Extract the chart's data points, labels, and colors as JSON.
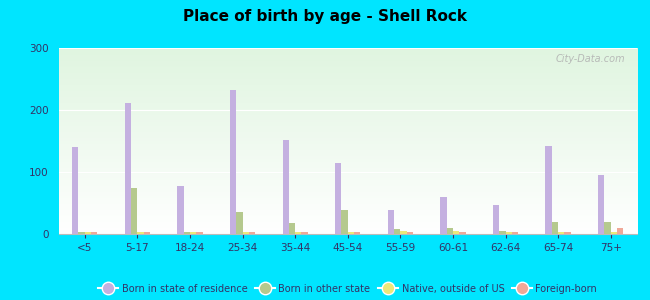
{
  "title": "Place of birth by age - Shell Rock",
  "categories": [
    "<5",
    "5-17",
    "18-24",
    "25-34",
    "35-44",
    "45-54",
    "55-59",
    "60-61",
    "62-64",
    "65-74",
    "75+"
  ],
  "series": {
    "Born in state of residence": [
      140,
      212,
      78,
      232,
      152,
      115,
      38,
      60,
      47,
      142,
      95
    ],
    "Born in other state": [
      3,
      75,
      3,
      35,
      18,
      38,
      8,
      10,
      5,
      20,
      20
    ],
    "Native, outside of US": [
      3,
      3,
      3,
      3,
      3,
      3,
      5,
      5,
      3,
      3,
      3
    ],
    "Foreign-born": [
      3,
      3,
      3,
      3,
      3,
      3,
      3,
      3,
      3,
      3,
      10
    ]
  },
  "colors": {
    "Born in state of residence": "#c4b0e0",
    "Born in other state": "#b5c98e",
    "Native, outside of US": "#ede87a",
    "Foreign-born": "#f0a898"
  },
  "ylim": [
    0,
    300
  ],
  "yticks": [
    0,
    100,
    200,
    300
  ],
  "figure_bg": "#00e5ff",
  "bar_width": 0.12,
  "grid_color": "#ffffff",
  "watermark": "City-Data.com"
}
